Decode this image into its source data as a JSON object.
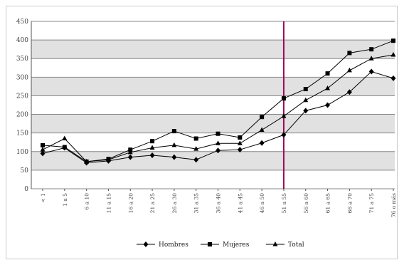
{
  "chart_data": {
    "type": "line",
    "categories": [
      "< 1",
      "1 a 5",
      "6 a 10",
      "11 a 15",
      "16 a 20",
      "21 a 25",
      "26 a 30",
      "31 a 35",
      "36 a 40",
      "41 a 45",
      "46 a 50",
      "51 a 55",
      "56 a 60",
      "61 a 65",
      "66 a 70",
      "71 a 75",
      "76 o más"
    ],
    "series": [
      {
        "name": "Hombres",
        "marker": "diamond",
        "values": [
          95,
          110,
          70,
          75,
          85,
          90,
          85,
          78,
          103,
          105,
          123,
          145,
          210,
          225,
          260,
          315,
          297
        ]
      },
      {
        "name": "Mujeres",
        "marker": "square",
        "values": [
          117,
          112,
          73,
          80,
          105,
          128,
          155,
          135,
          148,
          138,
          193,
          243,
          268,
          310,
          365,
          375,
          398
        ]
      },
      {
        "name": "Total",
        "marker": "triangle",
        "values": [
          105,
          135,
          73,
          78,
          98,
          110,
          117,
          107,
          122,
          122,
          158,
          195,
          238,
          270,
          318,
          350,
          360
        ]
      }
    ],
    "ylim": [
      0,
      450
    ],
    "yticks": [
      0,
      50,
      100,
      150,
      200,
      250,
      300,
      350,
      400,
      450
    ],
    "grid": true,
    "reference_line": {
      "at_category": "51 a 55",
      "color": "#a0005a"
    },
    "legend_position": "bottom-center",
    "colors": {
      "lines": "#000000",
      "grid": "#888888",
      "band": "#c9c9c9",
      "reference": "#a0005a"
    }
  }
}
